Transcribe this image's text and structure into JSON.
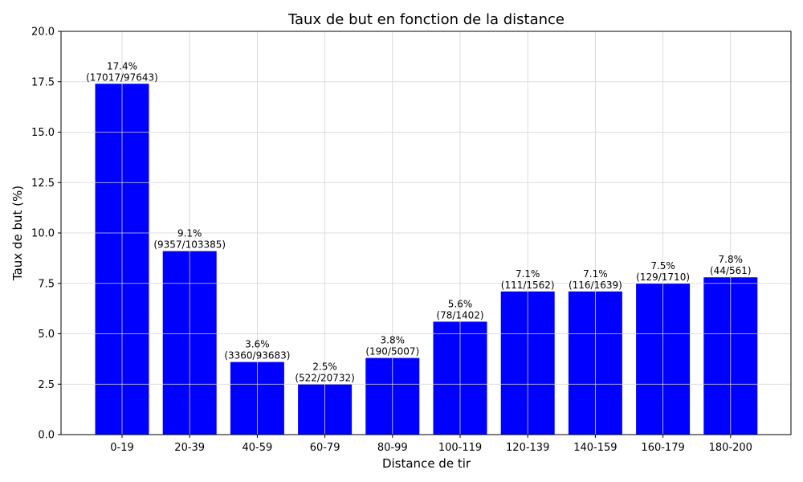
{
  "chart_data": {
    "type": "bar",
    "title": "Taux de but en fonction de la distance",
    "xlabel": "Distance de tir",
    "ylabel": "Taux de but (%)",
    "ylim": [
      0,
      20
    ],
    "yticks": [
      "0.0",
      "2.5",
      "5.0",
      "7.5",
      "10.0",
      "12.5",
      "15.0",
      "17.5",
      "20.0"
    ],
    "categories": [
      "0-19",
      "20-39",
      "40-59",
      "60-79",
      "80-99",
      "100-119",
      "120-139",
      "140-159",
      "160-179",
      "180-200"
    ],
    "values": [
      17.4,
      9.1,
      3.6,
      2.5,
      3.8,
      5.6,
      7.1,
      7.1,
      7.5,
      7.8
    ],
    "labels": [
      [
        "17.4%",
        "(17017/97643)"
      ],
      [
        "9.1%",
        "(9357/103385)"
      ],
      [
        "3.6%",
        "(3360/93683)"
      ],
      [
        "2.5%",
        "(522/20732)"
      ],
      [
        "3.8%",
        "(190/5007)"
      ],
      [
        "5.6%",
        "(78/1402)"
      ],
      [
        "7.1%",
        "(111/1562)"
      ],
      [
        "7.1%",
        "(116/1639)"
      ],
      [
        "7.5%",
        "(129/1710)"
      ],
      [
        "7.8%",
        "(44/561)"
      ]
    ],
    "bar_color": "#0000ff",
    "grid": true
  }
}
